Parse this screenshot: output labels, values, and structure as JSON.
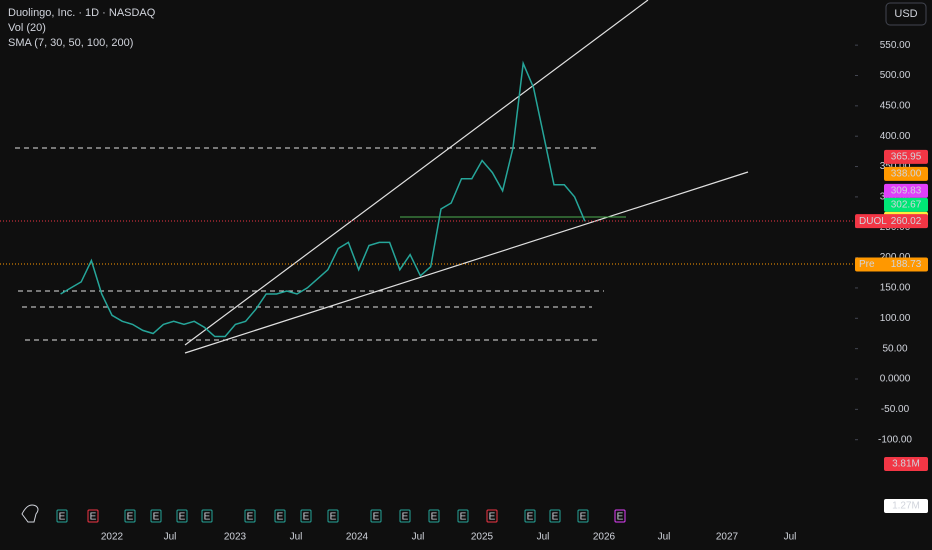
{
  "chart_data": {
    "type": "line",
    "title": "Duolingo, Inc. · 1D · NASDAQ",
    "indicators": [
      "Vol (20)",
      "SMA (7, 30, 50, 100, 200)"
    ],
    "currency": "USD",
    "color": "#26a69a",
    "x": [
      "2021-08",
      "2021-09",
      "2021-10",
      "2021-11",
      "2021-12",
      "2022-01",
      "2022-02",
      "2022-03",
      "2022-04",
      "2022-05",
      "2022-06",
      "2022-07",
      "2022-08",
      "2022-09",
      "2022-10",
      "2022-11",
      "2022-12",
      "2023-01",
      "2023-02",
      "2023-03",
      "2023-04",
      "2023-05",
      "2023-06",
      "2023-07",
      "2023-08",
      "2023-09",
      "2023-10",
      "2023-11",
      "2023-12",
      "2024-01",
      "2024-02",
      "2024-03",
      "2024-04",
      "2024-05",
      "2024-06",
      "2024-07",
      "2024-08",
      "2024-09",
      "2024-10",
      "2024-11",
      "2024-12",
      "2025-01",
      "2025-02",
      "2025-03",
      "2025-04",
      "2025-05",
      "2025-06",
      "2025-07",
      "2025-08",
      "2025-09",
      "2025-10",
      "2025-11"
    ],
    "values": [
      140,
      150,
      160,
      195,
      140,
      105,
      95,
      90,
      80,
      75,
      90,
      95,
      90,
      95,
      85,
      70,
      70,
      90,
      95,
      115,
      140,
      140,
      145,
      140,
      150,
      165,
      180,
      215,
      225,
      180,
      220,
      225,
      225,
      180,
      205,
      170,
      185,
      280,
      290,
      330,
      330,
      360,
      340,
      310,
      380,
      520,
      480,
      400,
      320,
      320,
      300,
      260
    ],
    "x_labels": [
      "2022",
      "Jul",
      "2023",
      "Jul",
      "2024",
      "Jul",
      "2025",
      "Jul",
      "2026",
      "Jul",
      "2027",
      "Jul"
    ],
    "yticks": [
      {
        "value": 550,
        "label": "550.00"
      },
      {
        "value": 500,
        "label": "500.00"
      },
      {
        "value": 450,
        "label": "450.00"
      },
      {
        "value": 400,
        "label": "400.00"
      },
      {
        "value": 350,
        "label": "350.00"
      },
      {
        "value": 300,
        "label": "300.00"
      },
      {
        "value": 250,
        "label": "250.00"
      },
      {
        "value": 200,
        "label": "200.00"
      },
      {
        "value": 150,
        "label": "150.00"
      },
      {
        "value": 100,
        "label": "100.00"
      },
      {
        "value": 50,
        "label": "50.00"
      },
      {
        "value": 0,
        "label": "0.0000"
      },
      {
        "value": -50,
        "label": "-50.00"
      },
      {
        "value": -100,
        "label": "-100.00"
      }
    ],
    "price_labels": [
      {
        "value": 365.95,
        "label": "365.95",
        "color": "#f23645"
      },
      {
        "value": 338,
        "label": "338.00",
        "color": "#ff9800"
      },
      {
        "value": 309.83,
        "label": "309.83",
        "color": "#e040fb"
      },
      {
        "value": 302.67,
        "label": "302.67",
        "color": "#00e676"
      },
      {
        "value": 269.58,
        "label": "269.58",
        "color": "#ffeb3b"
      }
    ],
    "last_price": {
      "tag": "DUOL",
      "value": 260.02,
      "label": "260.02"
    },
    "pre_price": {
      "tag": "Pre",
      "value": 188.73,
      "label": "188.73"
    },
    "volume_labels": [
      "3.81M",
      "1.27M"
    ],
    "earnings_marker": "E"
  }
}
